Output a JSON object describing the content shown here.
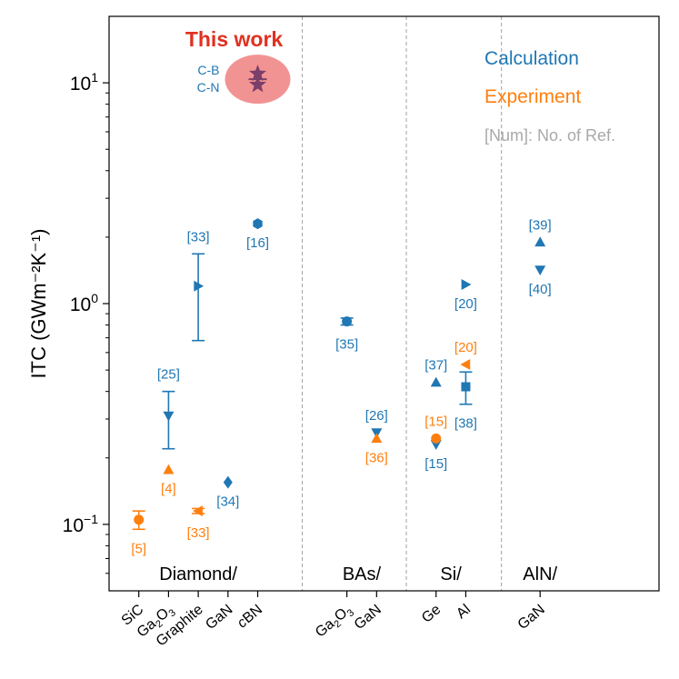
{
  "chart_data": {
    "type": "scatter",
    "title": "",
    "ylabel": "ITC (GWm⁻²K⁻¹)",
    "yscale": "log",
    "ylim": [
      0.05,
      20
    ],
    "yticks": [
      {
        "value": 0.1,
        "base": "10",
        "exp": "−1"
      },
      {
        "value": 1,
        "base": "10",
        "exp": "0"
      },
      {
        "value": 10,
        "base": "10",
        "exp": "1"
      }
    ],
    "xrange": [
      0,
      18.5
    ],
    "categories": [
      {
        "pos": 1,
        "label": "SiC"
      },
      {
        "pos": 2,
        "label": "Ga",
        "sub": "2",
        "label2": "O",
        "sub2": "3"
      },
      {
        "pos": 3,
        "label": "Graphite"
      },
      {
        "pos": 4,
        "label": "GaN"
      },
      {
        "pos": 5,
        "label": "cBN",
        "italic_first": "c",
        "rest": "BN"
      },
      {
        "pos": 8,
        "label": "Ga",
        "sub": "2",
        "label2": "O",
        "sub2": "3"
      },
      {
        "pos": 9,
        "label": "GaN"
      },
      {
        "pos": 11,
        "label": "Ge"
      },
      {
        "pos": 12,
        "label": "Al"
      },
      {
        "pos": 14.5,
        "label": "GaN"
      }
    ],
    "groups": [
      {
        "label": "Diamond/",
        "center": 3.0
      },
      {
        "label": "BAs/",
        "center": 8.5
      },
      {
        "label": "Si/",
        "center": 11.5
      },
      {
        "label": "AlN/",
        "center": 14.5
      }
    ],
    "separators": [
      6.5,
      10.0,
      13.2
    ],
    "series": [
      {
        "name": "Calculation",
        "color": "#1f77b4",
        "points": [
          {
            "x": 2,
            "y": 0.31,
            "marker": "triangle-down",
            "yerr": [
              0.22,
              0.4
            ],
            "ref": "[25]",
            "ref_pos": "above"
          },
          {
            "x": 3,
            "y": 1.2,
            "marker": "triangle-right",
            "yerr": [
              0.68,
              1.68
            ],
            "ref": "[33]",
            "ref_pos": "above"
          },
          {
            "x": 4,
            "y": 0.155,
            "marker": "diamond",
            "ref": "[34]",
            "ref_pos": "below"
          },
          {
            "x": 5,
            "y": 2.3,
            "marker": "hexagon",
            "ref": "[16]",
            "ref_pos": "below"
          },
          {
            "x": 8,
            "y": 0.83,
            "marker": "circle",
            "yerr": [
              0.8,
              0.86
            ],
            "ref": "[35]",
            "ref_pos": "below"
          },
          {
            "x": 9,
            "y": 0.26,
            "marker": "triangle-down",
            "ref": "[26]",
            "ref_pos": "above"
          },
          {
            "x": 11,
            "y": 0.44,
            "marker": "triangle-up",
            "ref": "[37]",
            "ref_pos": "above"
          },
          {
            "x": 11,
            "y": 0.23,
            "marker": "triangle-down",
            "ref": "[15]",
            "ref_pos": "below"
          },
          {
            "x": 12,
            "y": 1.22,
            "marker": "triangle-right",
            "ref": "[20]",
            "ref_pos": "below"
          },
          {
            "x": 12,
            "y": 0.42,
            "marker": "square",
            "yerr": [
              0.35,
              0.49
            ],
            "ref": "[38]",
            "ref_pos": "below"
          },
          {
            "x": 14.5,
            "y": 1.9,
            "marker": "triangle-up",
            "ref": "[39]",
            "ref_pos": "above"
          },
          {
            "x": 14.5,
            "y": 1.42,
            "marker": "triangle-down",
            "ref": "[40]",
            "ref_pos": "below"
          }
        ]
      },
      {
        "name": "Experiment",
        "color": "#ff7f0e",
        "points": [
          {
            "x": 1,
            "y": 0.105,
            "marker": "circle",
            "yerr": [
              0.095,
              0.115
            ],
            "ref": "[5]",
            "ref_pos": "below"
          },
          {
            "x": 2,
            "y": 0.177,
            "marker": "triangle-up",
            "ref": "[4]",
            "ref_pos": "below"
          },
          {
            "x": 3,
            "y": 0.115,
            "marker": "triangle-left",
            "yerr": [
              0.112,
              0.118
            ],
            "ref": "[33]",
            "ref_pos": "below"
          },
          {
            "x": 9,
            "y": 0.245,
            "marker": "triangle-up",
            "ref": "[36]",
            "ref_pos": "below"
          },
          {
            "x": 11,
            "y": 0.245,
            "marker": "circle",
            "ref": "[15]",
            "ref_pos": "above"
          },
          {
            "x": 12,
            "y": 0.53,
            "marker": "triangle-left",
            "ref": "[20]",
            "ref_pos": "above"
          }
        ]
      }
    ],
    "highlight": {
      "label": "This work",
      "label_color": "#e03020",
      "ellipse_color": "#f08080",
      "x": 5,
      "points": [
        {
          "name": "C-B",
          "y": 11.0,
          "marker": "star"
        },
        {
          "name": "C-N",
          "y": 9.8,
          "marker": "star"
        }
      ]
    },
    "legend": {
      "position": "top-right",
      "items": [
        {
          "text": "Calculation",
          "color": "#1f77b4"
        },
        {
          "text": "Experiment",
          "color": "#ff7f0e"
        },
        {
          "text": "[Num]: No. of Ref.",
          "color": "#a9a9a9"
        }
      ]
    }
  }
}
